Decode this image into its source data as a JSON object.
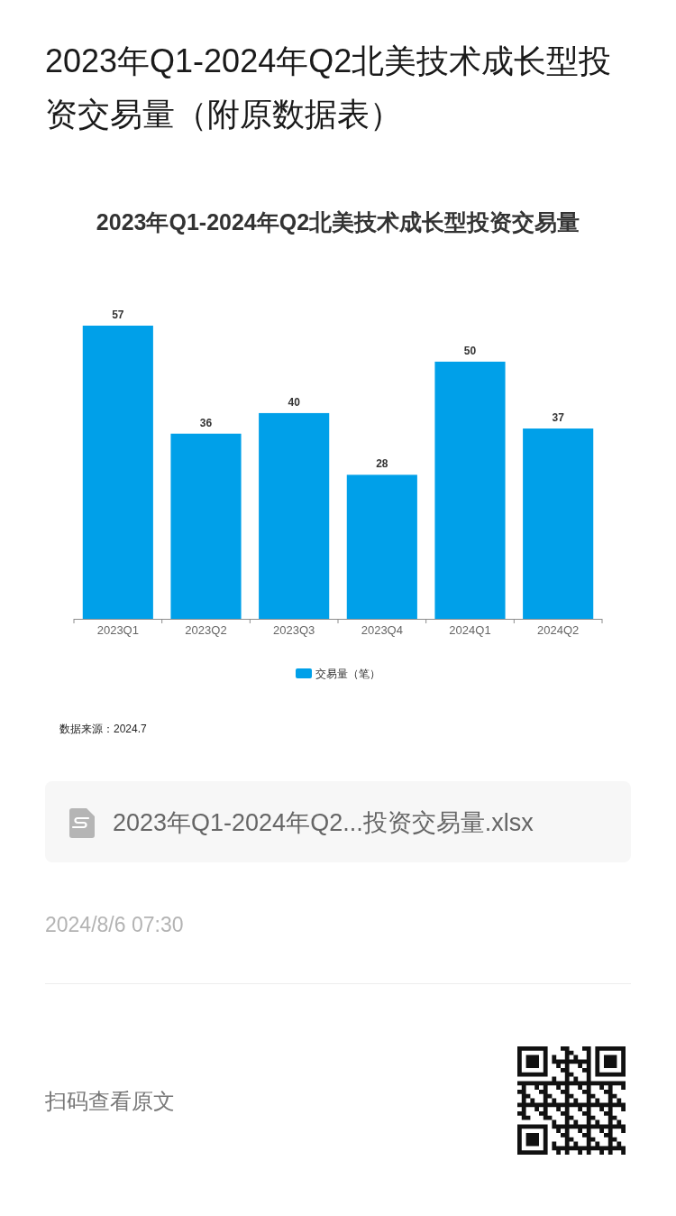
{
  "chart_data": {
    "type": "bar",
    "title": "2023年Q1-2024年Q2北美技术成长型投资交易量（附原数据表）",
    "subtitle": "2023年Q1-2024年Q2北美技术成长型投资交易量",
    "categories": [
      "2023Q1",
      "2023Q2",
      "2023Q3",
      "2023Q4",
      "2024Q1",
      "2024Q2"
    ],
    "series": [
      {
        "name": "交易量（笔）",
        "color": "#00a0e9",
        "values": [
          57,
          36,
          40,
          28,
          50,
          37
        ]
      }
    ],
    "data_labels": true,
    "legend": "bottom",
    "annotations": [
      "数据来源：2024.7",
      "2023年Q1-2024年Q2...投资交易量.xlsx",
      "2024/8/6 07:30",
      "扫码查看原文"
    ]
  }
}
